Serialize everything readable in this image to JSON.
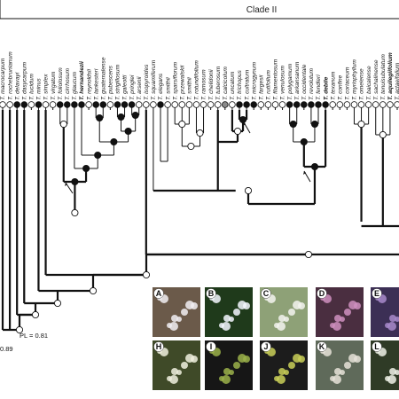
{
  "header": {
    "clade_title": "Clade II"
  },
  "tree": {
    "taxa": [
      {
        "label": "T. macrocarpum",
        "state": "open",
        "bold": false
      },
      {
        "label": "T. rochebrunianum",
        "state": "open",
        "bold": false
      },
      {
        "label": "T. delavayi",
        "state": "filled",
        "bold": false
      },
      {
        "label": "T. dasycarpum",
        "state": "filled",
        "bold": false
      },
      {
        "label": "T. lucidum",
        "state": "open",
        "bold": false
      },
      {
        "label": "T. minus",
        "state": "filled",
        "bold": false
      },
      {
        "label": "T. simplex",
        "state": "open",
        "bold": false
      },
      {
        "label": "T. virgatum",
        "state": "open",
        "bold": false
      },
      {
        "label": "T. foliolosum",
        "state": "filled",
        "bold": false
      },
      {
        "label": "T. cirrhosum",
        "state": "filled",
        "bold": false
      },
      {
        "label": "T. glaucum",
        "state": "filled",
        "bold": false
      },
      {
        "label": "T. hernandezii",
        "state": "filled",
        "bold": true
      },
      {
        "label": "T. reynoldsii",
        "state": "open",
        "bold": false
      },
      {
        "label": "T. lankesteri",
        "state": "filled",
        "bold": false
      },
      {
        "label": "T. guatemalense",
        "state": "filled",
        "bold": false
      },
      {
        "label": "T. pubescens",
        "state": "open",
        "bold": false
      },
      {
        "label": "T. strigillosum",
        "state": "filled",
        "bold": false
      },
      {
        "label": "T. galeotti",
        "state": "filled",
        "bold": false
      },
      {
        "label": "T. pringlei",
        "state": "filled",
        "bold": false
      },
      {
        "label": "T. arsenii",
        "state": "open",
        "bold": false
      },
      {
        "label": "T. isopyroides",
        "state": "open",
        "bold": false
      },
      {
        "label": "T. squamiferum",
        "state": "open",
        "bold": false
      },
      {
        "label": "T. elegans",
        "state": "filled",
        "bold": false
      },
      {
        "label": "T. smithii",
        "state": "open",
        "bold": false
      },
      {
        "label": "T. sparsiflorum",
        "state": "open",
        "bold": false
      },
      {
        "label": "T. przewalskii",
        "state": "open",
        "bold": false
      },
      {
        "label": "T. smithii",
        "state": "open",
        "bold": false
      },
      {
        "label": "T. rotundifolium",
        "state": "open",
        "bold": false
      },
      {
        "label": "T. ramosum",
        "state": "open",
        "bold": false
      },
      {
        "label": "T. chelidonii",
        "state": "open",
        "bold": false
      },
      {
        "label": "T. tuberosum",
        "state": "open",
        "bold": false
      },
      {
        "label": "T. calcicolum",
        "state": "grey",
        "bold": false
      },
      {
        "label": "T. uncatum",
        "state": "open",
        "bold": false
      },
      {
        "label": "T. trichopus",
        "state": "filled",
        "bold": false
      },
      {
        "label": "T. cultratum",
        "state": "filled",
        "bold": false
      },
      {
        "label": "T. microgynum",
        "state": "filled",
        "bold": false
      },
      {
        "label": "T. fargesii",
        "state": "open",
        "bold": false
      },
      {
        "label": "T. rutifolium",
        "state": "open",
        "bold": false
      },
      {
        "label": "T. filamentosum",
        "state": "open",
        "bold": false
      },
      {
        "label": "T. venulosum",
        "state": "open",
        "bold": false
      },
      {
        "label": "T. polygamum",
        "state": "filled",
        "bold": false
      },
      {
        "label": "T. arkansanum",
        "state": "filled",
        "bold": false
      },
      {
        "label": "T. occidentale",
        "state": "filled",
        "bold": false
      },
      {
        "label": "T. revolutum",
        "state": "filled",
        "bold": false
      },
      {
        "label": "T. fendleri",
        "state": "filled",
        "bold": false
      },
      {
        "label": "T. debile",
        "state": "filled",
        "bold": true
      },
      {
        "label": "T. texanum",
        "state": "open",
        "bold": false
      },
      {
        "label": "T. confine",
        "state": "open",
        "bold": false
      },
      {
        "label": "T. coriaceum",
        "state": "open",
        "bold": false
      },
      {
        "label": "T. myriophyllum",
        "state": "open",
        "bold": false
      },
      {
        "label": "T. omeiense",
        "state": "open",
        "bold": false
      },
      {
        "label": "T. baicalense",
        "state": "open",
        "bold": false
      },
      {
        "label": "T. sachalinense",
        "state": "open",
        "bold": false
      },
      {
        "label": "T. tenuisubulatum",
        "state": "open",
        "bold": false
      },
      {
        "label": "T. aquilegiifolium",
        "state": "open",
        "bold": true
      },
      {
        "label": "T. actaeifolium",
        "state": "open",
        "bold": false
      }
    ],
    "pl_annotation": "PL = 0.81",
    "pl_partial": "0.89"
  },
  "photos": [
    {
      "letter": "A",
      "color": "#6b5a4a",
      "accent": "#f1eef2"
    },
    {
      "letter": "B",
      "color": "#1f3a1b",
      "accent": "#f4f7ff"
    },
    {
      "letter": "C",
      "color": "#8ea177",
      "accent": "#f3f3ef"
    },
    {
      "letter": "D",
      "color": "#4a2e40",
      "accent": "#cf8fc0"
    },
    {
      "letter": "E",
      "color": "#3c2f55",
      "accent": "#a88acb"
    },
    {
      "letter": "H",
      "color": "#3f4a28",
      "accent": "#f0f0de"
    },
    {
      "letter": "I",
      "color": "#161616",
      "accent": "#9bb24a"
    },
    {
      "letter": "J",
      "color": "#1c1c1c",
      "accent": "#c9cf58"
    },
    {
      "letter": "K",
      "color": "#5f6a5a",
      "accent": "#e6e2d8"
    },
    {
      "letter": "L",
      "color": "#2f3b26",
      "accent": "#eff2e8"
    }
  ]
}
